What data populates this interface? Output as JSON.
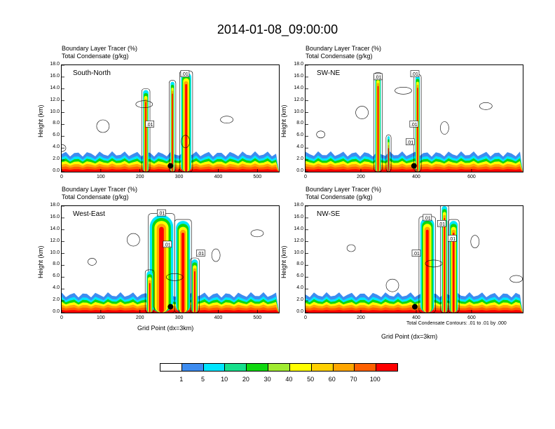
{
  "title": "2014-01-08_09:00:00",
  "panel_titles": {
    "line1": "Boundary Layer Tracer   (%)",
    "line2": "Total Condensate   (g/kg)"
  },
  "ylabel": "Height (km)",
  "xlabel": "Grid Point (dx=3km)",
  "contour_note": "Total Condensate Contours: .01 to .01 by .000",
  "yticks": [
    "0.0",
    "2.0",
    "4.0",
    "6.0",
    "8.0",
    "10.0",
    "12.0",
    "14.0",
    "16.0",
    "18.0"
  ],
  "colorbar": {
    "colors": [
      "#ffffff",
      "#3d8cf0",
      "#00e5ff",
      "#16e08c",
      "#0fd80f",
      "#a0eb30",
      "#ffff00",
      "#ffd000",
      "#ffa600",
      "#ff6000",
      "#ff0000"
    ],
    "labels": [
      "1",
      "5",
      "10",
      "20",
      "30",
      "40",
      "50",
      "60",
      "70",
      "100"
    ]
  },
  "chart_data": [
    {
      "type": "heatmap",
      "label": "South-North",
      "xlabel": "",
      "ylabel": "Height (km)",
      "xlim": [
        0,
        555
      ],
      "ylim": [
        0,
        18
      ],
      "xticks": [
        "0",
        "100",
        "200",
        "300",
        "400",
        "500"
      ],
      "xtick_values": [
        0,
        100,
        200,
        300,
        400,
        500
      ],
      "contour_labels": [
        {
          "x": 315,
          "y": 16.5,
          "text": ".01"
        },
        {
          "x": 225,
          "y": 8.0,
          "text": ".01"
        }
      ],
      "marker": {
        "x": 278,
        "y": 1.0
      },
      "plumes": [
        [
          215,
          7,
          13.8
        ],
        [
          318,
          13,
          16.8
        ],
        [
          283,
          5,
          15.2
        ]
      ]
    },
    {
      "type": "heatmap",
      "label": "SW-NE",
      "xlabel": "",
      "ylabel": "Height (km)",
      "xlim": [
        0,
        785
      ],
      "ylim": [
        0,
        18
      ],
      "xticks": [
        "0",
        "200",
        "400",
        "600"
      ],
      "xtick_values": [
        0,
        200,
        400,
        600
      ],
      "contour_labels": [
        {
          "x": 262,
          "y": 16.0,
          "text": ".01"
        },
        {
          "x": 395,
          "y": 16.5,
          "text": ".01"
        },
        {
          "x": 392,
          "y": 8.0,
          "text": ".01"
        },
        {
          "x": 378,
          "y": 5.0,
          "text": ".01"
        }
      ],
      "marker": {
        "x": 392,
        "y": 1.0
      },
      "plumes": [
        [
          262,
          10,
          16.5
        ],
        [
          300,
          4,
          6.0
        ],
        [
          405,
          8,
          16.2
        ]
      ]
    },
    {
      "type": "heatmap",
      "label": "West-East",
      "xlabel": "Grid Point (dx=3km)",
      "ylabel": "Height (km)",
      "xlim": [
        0,
        555
      ],
      "ylim": [
        0,
        18
      ],
      "xticks": [
        "0",
        "100",
        "200",
        "300",
        "400",
        "500"
      ],
      "xtick_values": [
        0,
        100,
        200,
        300,
        400,
        500
      ],
      "contour_labels": [
        {
          "x": 255,
          "y": 16.8,
          "text": ".01"
        },
        {
          "x": 270,
          "y": 11.5,
          "text": ".01"
        },
        {
          "x": 355,
          "y": 10.0,
          "text": ".01"
        }
      ],
      "marker": {
        "x": 278,
        "y": 1.0
      },
      "plumes": [
        [
          255,
          30,
          16.5
        ],
        [
          310,
          18,
          15.5
        ],
        [
          340,
          8,
          9.0
        ],
        [
          225,
          8,
          7.0
        ]
      ]
    },
    {
      "type": "heatmap",
      "label": "NW-SE",
      "xlabel": "Grid Point (dx=3km)",
      "ylabel": "Height (km)",
      "xlim": [
        0,
        785
      ],
      "ylim": [
        0,
        18
      ],
      "xticks": [
        "0",
        "200",
        "400",
        "600"
      ],
      "xtick_values": [
        0,
        200,
        400,
        600
      ],
      "contour_labels": [
        {
          "x": 440,
          "y": 16.0,
          "text": ".01"
        },
        {
          "x": 492,
          "y": 15.0,
          "text": ".01"
        },
        {
          "x": 400,
          "y": 10.0,
          "text": ".01"
        },
        {
          "x": 530,
          "y": 12.5,
          "text": ".01"
        }
      ],
      "marker": {
        "x": 395,
        "y": 1.0
      },
      "plumes": [
        [
          440,
          25,
          16.0
        ],
        [
          502,
          10,
          18.0
        ],
        [
          535,
          15,
          15.5
        ]
      ]
    }
  ]
}
